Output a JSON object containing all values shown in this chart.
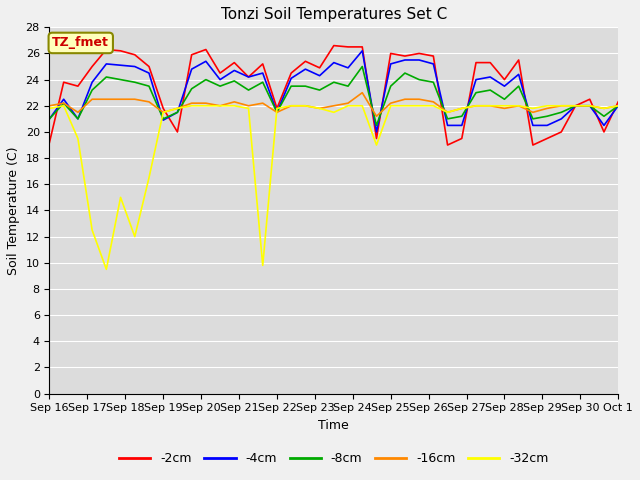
{
  "title": "Tonzi Soil Temperatures Set C",
  "xlabel": "Time",
  "ylabel": "Soil Temperature (C)",
  "annotation": "TZ_fmet",
  "ylim": [
    0,
    28
  ],
  "yticks": [
    0,
    2,
    4,
    6,
    8,
    10,
    12,
    14,
    16,
    18,
    20,
    22,
    24,
    26,
    28
  ],
  "x_labels": [
    "Sep 16",
    "Sep 17",
    "Sep 18",
    "Sep 19",
    "Sep 20",
    "Sep 21",
    "Sep 22",
    "Sep 23",
    "Sep 24",
    "Sep 25",
    "Sep 26",
    "Sep 27",
    "Sep 28",
    "Sep 29",
    "Sep 30",
    "Oct 1"
  ],
  "series_order": [
    "-2cm",
    "-4cm",
    "-8cm",
    "-16cm",
    "-32cm"
  ],
  "series": {
    "-2cm": {
      "color": "#ff0000",
      "values": [
        19.2,
        23.8,
        23.5,
        25.0,
        26.3,
        26.2,
        25.9,
        25.0,
        21.8,
        20.0,
        25.9,
        26.3,
        24.5,
        25.3,
        24.2,
        25.2,
        21.8,
        24.5,
        25.4,
        24.9,
        26.6,
        26.5,
        26.5,
        19.5,
        26.0,
        25.8,
        26.0,
        25.8,
        19.0,
        19.5,
        25.3,
        25.3,
        24.0,
        25.5,
        19.0,
        19.5,
        20.0,
        22.0,
        22.5,
        20.0,
        22.3
      ]
    },
    "-4cm": {
      "color": "#0000ff",
      "values": [
        21.0,
        22.5,
        21.0,
        23.8,
        25.2,
        25.1,
        25.0,
        24.5,
        20.9,
        21.5,
        24.8,
        25.4,
        24.0,
        24.7,
        24.2,
        24.5,
        21.5,
        24.1,
        24.8,
        24.3,
        25.3,
        24.9,
        26.2,
        20.0,
        25.2,
        25.5,
        25.5,
        25.2,
        20.5,
        20.5,
        24.0,
        24.2,
        23.5,
        24.4,
        20.5,
        20.5,
        21.0,
        22.0,
        22.0,
        20.5,
        22.0
      ]
    },
    "-8cm": {
      "color": "#00aa00",
      "values": [
        21.0,
        22.2,
        21.0,
        23.2,
        24.2,
        24.0,
        23.8,
        23.5,
        21.0,
        21.5,
        23.3,
        24.0,
        23.5,
        23.9,
        23.2,
        23.8,
        21.5,
        23.5,
        23.5,
        23.2,
        23.8,
        23.5,
        25.0,
        20.5,
        23.5,
        24.5,
        24.0,
        23.8,
        21.0,
        21.2,
        23.0,
        23.2,
        22.5,
        23.5,
        21.0,
        21.2,
        21.5,
        22.0,
        22.0,
        21.2,
        22.0
      ]
    },
    "-16cm": {
      "color": "#ff8800",
      "values": [
        22.0,
        22.2,
        21.5,
        22.5,
        22.5,
        22.5,
        22.5,
        22.3,
        21.5,
        21.8,
        22.2,
        22.2,
        22.0,
        22.3,
        22.0,
        22.2,
        21.5,
        22.0,
        22.0,
        21.8,
        22.0,
        22.2,
        23.0,
        21.2,
        22.2,
        22.5,
        22.5,
        22.3,
        21.5,
        21.8,
        22.0,
        22.0,
        21.8,
        22.0,
        21.5,
        21.8,
        22.0,
        22.0,
        22.0,
        21.8,
        22.0
      ]
    },
    "-32cm": {
      "color": "#ffff00",
      "values": [
        21.8,
        22.0,
        19.5,
        12.5,
        9.5,
        15.0,
        12.0,
        16.5,
        21.5,
        21.8,
        22.0,
        22.0,
        22.0,
        22.0,
        21.8,
        9.8,
        21.8,
        22.0,
        22.0,
        21.8,
        21.5,
        22.0,
        22.0,
        19.0,
        22.0,
        22.0,
        22.0,
        22.0,
        21.5,
        21.8,
        22.0,
        22.0,
        22.0,
        22.0,
        21.8,
        22.0,
        22.0,
        22.0,
        22.0,
        21.8,
        22.0
      ]
    }
  },
  "background_color": "#dcdcdc",
  "fig_facecolor": "#f0f0f0",
  "title_fontsize": 11,
  "axis_fontsize": 9,
  "tick_fontsize": 8,
  "linewidth": 1.2
}
